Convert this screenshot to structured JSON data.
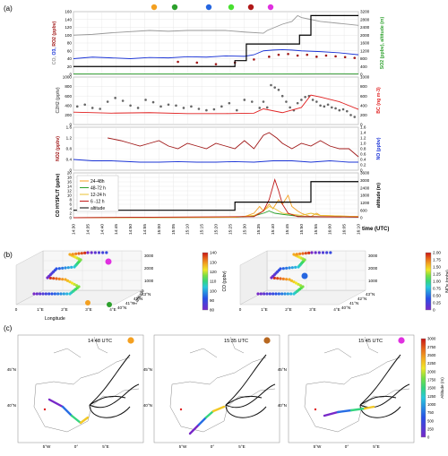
{
  "panel_labels": {
    "a": "(a)",
    "b": "(b)",
    "c": "(c)"
  },
  "marker_colors": [
    "#f4a020",
    "#2ca02c",
    "#2566e0",
    "#48e030",
    "#b01818",
    "#e030e0"
  ],
  "chart_data": [
    {
      "type": "line",
      "panel": "a1",
      "ylabel_left": [
        "CO",
        "O3",
        "RO2"
      ],
      "ylabel_left_units": "(ppbv)",
      "ylabel_right": [
        "SO2",
        "(ppbv), altitude (m)"
      ],
      "ylim_left": [
        0,
        160
      ],
      "ylim_right": [
        0,
        3200
      ],
      "yticks_left": [
        "0",
        "20",
        "40",
        "60",
        "80",
        "100",
        "120",
        "140",
        "160"
      ],
      "yticks_right": [
        "0",
        "400",
        "800",
        "1200",
        "1600",
        "2000",
        "2400",
        "2800",
        "3200"
      ],
      "colors": {
        "CO": "#999999",
        "O3": "#1a33d6",
        "RO2": "#a01818",
        "SO2": "#2ca02c",
        "altitude": "#000000"
      },
      "series": [
        {
          "name": "CO",
          "x": [
            0,
            10,
            20,
            40,
            50,
            60,
            80,
            90,
            100,
            102,
            106,
            110,
            115,
            118,
            120,
            125,
            130,
            140,
            150
          ],
          "y": [
            100,
            102,
            106,
            112,
            110,
            112,
            112,
            108,
            105,
            112,
            120,
            128,
            135,
            150,
            145,
            140,
            135,
            130,
            125
          ]
        },
        {
          "name": "O3",
          "x": [
            0,
            10,
            20,
            30,
            40,
            50,
            60,
            70,
            80,
            90,
            95,
            100,
            105,
            110,
            115,
            120,
            130,
            140,
            150
          ],
          "y": [
            40,
            44,
            42,
            40,
            43,
            42,
            45,
            44,
            47,
            46,
            50,
            60,
            62,
            63,
            62,
            60,
            58,
            55,
            50
          ]
        },
        {
          "name": "RO2",
          "x": [
            55,
            65,
            75,
            85,
            95,
            103,
            108,
            113,
            118,
            123,
            128,
            133,
            138,
            143,
            148
          ],
          "y": [
            32,
            30,
            26,
            30,
            38,
            45,
            50,
            52,
            48,
            50,
            45,
            48,
            46,
            44,
            42
          ]
        },
        {
          "name": "SO2",
          "x": [
            0,
            10,
            20,
            30,
            40,
            50,
            60,
            70,
            80,
            90,
            100,
            110,
            120,
            130,
            140,
            150
          ],
          "y": [
            25,
            20,
            22,
            18,
            20,
            22,
            20,
            20,
            22,
            20,
            18,
            20,
            25,
            30,
            30,
            28
          ]
        },
        {
          "name": "altitude",
          "x": [
            0,
            85,
            85,
            91,
            91,
            119,
            119,
            125,
            125,
            150
          ],
          "y": [
            400,
            400,
            700,
            700,
            1550,
            1550,
            2000,
            2000,
            3000,
            3000
          ]
        }
      ]
    },
    {
      "type": "scatter",
      "panel": "a2",
      "ylabel_left": [
        "C2H2",
        "(pptv)"
      ],
      "ylabel_right": [
        "BC",
        "(ng m-3)"
      ],
      "ylim_left": [
        0,
        1000
      ],
      "ylim_right": [
        0,
        1000
      ],
      "yticks_left": [
        "0",
        "200",
        "400",
        "600",
        "800",
        "1000"
      ],
      "yticks_right": [
        "0",
        "200",
        "400",
        "600",
        "800",
        "1000"
      ],
      "colors": {
        "C2H2": "#666666",
        "BC": "#e02020"
      },
      "series": [
        {
          "name": "C2H2",
          "x": [
            2,
            6,
            10,
            14,
            18,
            22,
            26,
            30,
            34,
            38,
            42,
            46,
            50,
            54,
            58,
            62,
            66,
            70,
            74,
            78,
            82,
            86,
            90,
            94,
            98,
            100,
            102,
            104,
            106,
            108,
            110,
            112,
            114,
            116,
            118,
            120,
            122,
            124,
            126,
            128,
            130,
            132,
            134,
            136,
            138,
            140,
            142,
            144,
            146,
            148
          ],
          "y": [
            380,
            420,
            350,
            330,
            480,
            560,
            500,
            400,
            350,
            520,
            470,
            380,
            420,
            400,
            350,
            380,
            330,
            300,
            320,
            380,
            450,
            300,
            520,
            480,
            350,
            480,
            360,
            830,
            780,
            730,
            600,
            480,
            360,
            300,
            450,
            520,
            580,
            600,
            520,
            480,
            400,
            380,
            420,
            360,
            340,
            300,
            320,
            280,
            200,
            160
          ]
        },
        {
          "name": "BC",
          "x": [
            0,
            20,
            40,
            60,
            80,
            95,
            100,
            110,
            120,
            125,
            130,
            140,
            150
          ],
          "y": [
            260,
            240,
            250,
            230,
            230,
            240,
            330,
            250,
            360,
            620,
            580,
            480,
            320
          ]
        }
      ]
    },
    {
      "type": "line",
      "panel": "a3",
      "ylabel_left": [
        "NO2",
        "(ppbv)"
      ],
      "ylabel_right": [
        "NO",
        "(ppbv)"
      ],
      "ylim_left": [
        0,
        1.6
      ],
      "ylim_right": [
        0,
        1.6
      ],
      "yticks_left": [
        "0",
        "0.4",
        "0.8",
        "1.2",
        "1.6"
      ],
      "yticks_right": [
        "0",
        "0.2",
        "0.4",
        "0.6",
        "0.8",
        "1.0",
        "1.2",
        "1.4",
        "1.6"
      ],
      "colors": {
        "NO2": "#a01818",
        "NO": "#1a33d6"
      },
      "series": [
        {
          "name": "NO2",
          "x": [
            18,
            25,
            30,
            35,
            40,
            45,
            50,
            55,
            60,
            65,
            70,
            75,
            80,
            85,
            90,
            95,
            100,
            103,
            107,
            110,
            115,
            120,
            125,
            130,
            135,
            140,
            145,
            150
          ],
          "y": [
            1.2,
            1.1,
            1.0,
            0.9,
            1.0,
            1.1,
            0.9,
            0.8,
            1.0,
            0.9,
            0.8,
            1.0,
            0.9,
            0.8,
            1.1,
            0.8,
            1.3,
            1.4,
            1.2,
            1.0,
            0.8,
            1.0,
            0.9,
            1.1,
            0.9,
            0.8,
            0.8,
            0.5
          ]
        },
        {
          "name": "NO",
          "x": [
            0,
            10,
            20,
            35,
            45,
            55,
            65,
            75,
            85,
            95,
            105,
            115,
            125,
            135,
            145,
            150
          ],
          "y": [
            0.4,
            0.35,
            0.35,
            0.3,
            0.3,
            0.32,
            0.3,
            0.3,
            0.32,
            0.3,
            0.35,
            0.35,
            0.3,
            0.35,
            0.3,
            0.3
          ]
        }
      ]
    },
    {
      "type": "line",
      "panel": "a4",
      "ylabel_left": [
        "CO HYSPLIT",
        "(ppbv)"
      ],
      "ylabel_right": [
        "altitude",
        "(m)"
      ],
      "xlabel": "time (UTC)",
      "ylim_left": [
        0,
        20
      ],
      "ylim_right": [
        0,
        3600
      ],
      "yticks_left": [
        "0",
        "2",
        "4",
        "6",
        "8",
        "10",
        "12",
        "14",
        "16",
        "18",
        "20"
      ],
      "yticks_right": [
        "0",
        "600",
        "1200",
        "1800",
        "2400",
        "3000",
        "3600"
      ],
      "categories": [
        "14:30",
        "14:35",
        "14:40",
        "14:45",
        "14:50",
        "14:55",
        "15:00",
        "15:05",
        "15:10",
        "15:15",
        "15:20",
        "15:25",
        "15:30",
        "15:35",
        "15:40",
        "15:45",
        "15:50",
        "15:55",
        "16:00",
        "16:05",
        "16:10"
      ],
      "legend": [
        "24-48h",
        "48-72 h",
        "12-24 h",
        "6 -12 h",
        "altitude"
      ],
      "colors": {
        "24-48h": "#f4a020",
        "48-72 h": "#2ca02c",
        "12-24 h": "#e8c030",
        "6 -12 h": "#c01818",
        "altitude": "#000000"
      },
      "series": [
        {
          "name": "24-48h",
          "x": [
            0,
            80,
            90,
            95,
            98,
            100,
            103,
            105,
            108,
            110,
            113,
            115,
            118,
            120,
            123,
            125,
            128,
            130,
            150
          ],
          "y": [
            0,
            0.2,
            0.5,
            2,
            5,
            3,
            6,
            4,
            8,
            6,
            10,
            5,
            3,
            2,
            1,
            0.5,
            2,
            1,
            0.5
          ]
        },
        {
          "name": "48-72 h",
          "x": [
            0,
            85,
            95,
            100,
            103,
            106,
            110,
            115,
            120,
            125,
            150
          ],
          "y": [
            0,
            0.2,
            0.8,
            2,
            3,
            2,
            1.5,
            1,
            0.5,
            0.5,
            0.3
          ]
        },
        {
          "name": "12-24 h",
          "x": [
            0,
            85,
            95,
            100,
            103,
            106,
            110,
            115,
            120,
            125,
            130,
            150
          ],
          "y": [
            0,
            0.2,
            1,
            3,
            5,
            4,
            2,
            1.5,
            1,
            2,
            1,
            0.5
          ]
        },
        {
          "name": "6 -12 h",
          "x": [
            0,
            95,
            100,
            103,
            106,
            108,
            110,
            113,
            118,
            150
          ],
          "y": [
            0,
            0.5,
            3,
            8,
            17,
            12,
            6,
            2,
            0.5,
            0.3
          ]
        },
        {
          "name": "altitude",
          "x": [
            0,
            85,
            85,
            125,
            125,
            150
          ],
          "y": [
            600,
            600,
            1250,
            1250,
            2900,
            2900
          ]
        }
      ]
    },
    {
      "type": "scatter",
      "panel": "b1",
      "xlabel": "Longitude",
      "ylabel": "Latitude",
      "zlabel": "Altitude(m)",
      "colorbar_label": "CO (ppbv)",
      "colorbar_ticks": [
        "80",
        "90",
        "100",
        "110",
        "120",
        "130",
        "140"
      ],
      "x_ticks": [
        "0",
        "1°E",
        "2°E",
        "3°E",
        "4°E"
      ],
      "y_ticks": [
        "40°N",
        "41°N",
        "42°N",
        "43°N"
      ],
      "z_ticks": [
        "1000",
        "2000",
        "3000"
      ]
    },
    {
      "type": "scatter",
      "panel": "b2",
      "colorbar_label": "NOy (ppbv)",
      "colorbar_ticks": [
        "0",
        "0.25",
        "0.50",
        "0.75",
        "1.00",
        "1.25",
        "1.50",
        "1.75",
        "2.00"
      ],
      "x_ticks": [
        "0",
        "1°E",
        "2°E",
        "3°E",
        "4°E"
      ],
      "y_ticks": [
        "40°N",
        "41°N",
        "42°N",
        "43°N"
      ],
      "z_ticks": [
        "1000",
        "2000",
        "3000"
      ],
      "zlabel": "Altitude(m)"
    },
    {
      "type": "map",
      "panel": "c",
      "times": [
        "14:48 UTC",
        "15:35 UTC",
        "15:45 UTC"
      ],
      "lat_ticks": [
        "45°N",
        "40°N"
      ],
      "lon_ticks": [
        "5°W",
        "0°",
        "5°E"
      ],
      "colorbar_label": "Altitude (m)",
      "colorbar_ticks": [
        "0",
        "250",
        "500",
        "750",
        "1000",
        "1250",
        "1500",
        "1750",
        "2000",
        "2250",
        "2500",
        "2750",
        "3000"
      ]
    }
  ]
}
